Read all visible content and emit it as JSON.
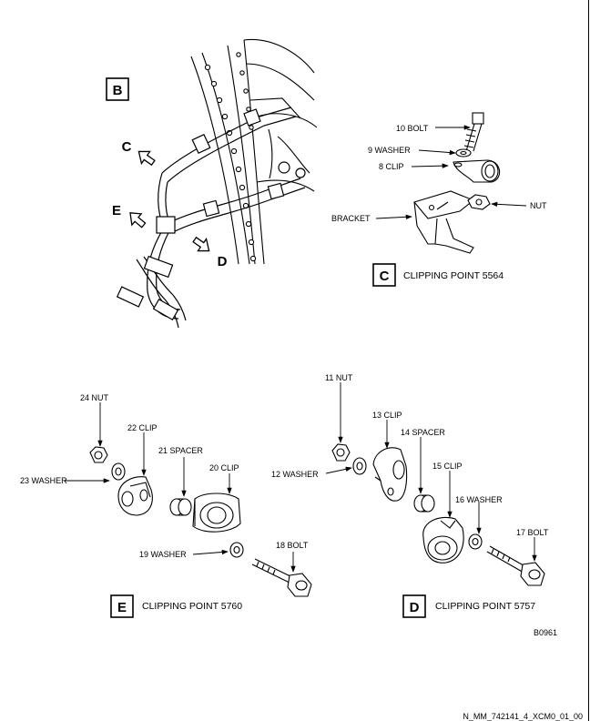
{
  "views": {
    "b": {
      "letter": "B",
      "callouts": {
        "c": "C",
        "d": "D",
        "e": "E"
      }
    },
    "c": {
      "letter": "C",
      "title": "CLIPPING POINT 5564",
      "labels": {
        "bolt": "10 BOLT",
        "washer": "9 WASHER",
        "clip": "8 CLIP",
        "bracket": "BRACKET",
        "nut": "NUT"
      }
    },
    "e": {
      "letter": "E",
      "title": "CLIPPING POINT 5760",
      "labels": {
        "nut": "24 NUT",
        "clip22": "22 CLIP",
        "washer23": "23 WASHER",
        "spacer": "21 SPACER",
        "clip20": "20 CLIP",
        "washer19": "19 WASHER",
        "bolt": "18 BOLT"
      }
    },
    "d": {
      "letter": "D",
      "title": "CLIPPING POINT 5757",
      "labels": {
        "nut": "11 NUT",
        "clip13": "13 CLIP",
        "washer12": "12 WASHER",
        "spacer": "14 SPACER",
        "clip15": "15 CLIP",
        "washer16": "16 WASHER",
        "bolt": "17 BOLT"
      }
    }
  },
  "figure_code": "B0961",
  "doc_ref": "N_MM_742141_4_XCM0_01_00"
}
